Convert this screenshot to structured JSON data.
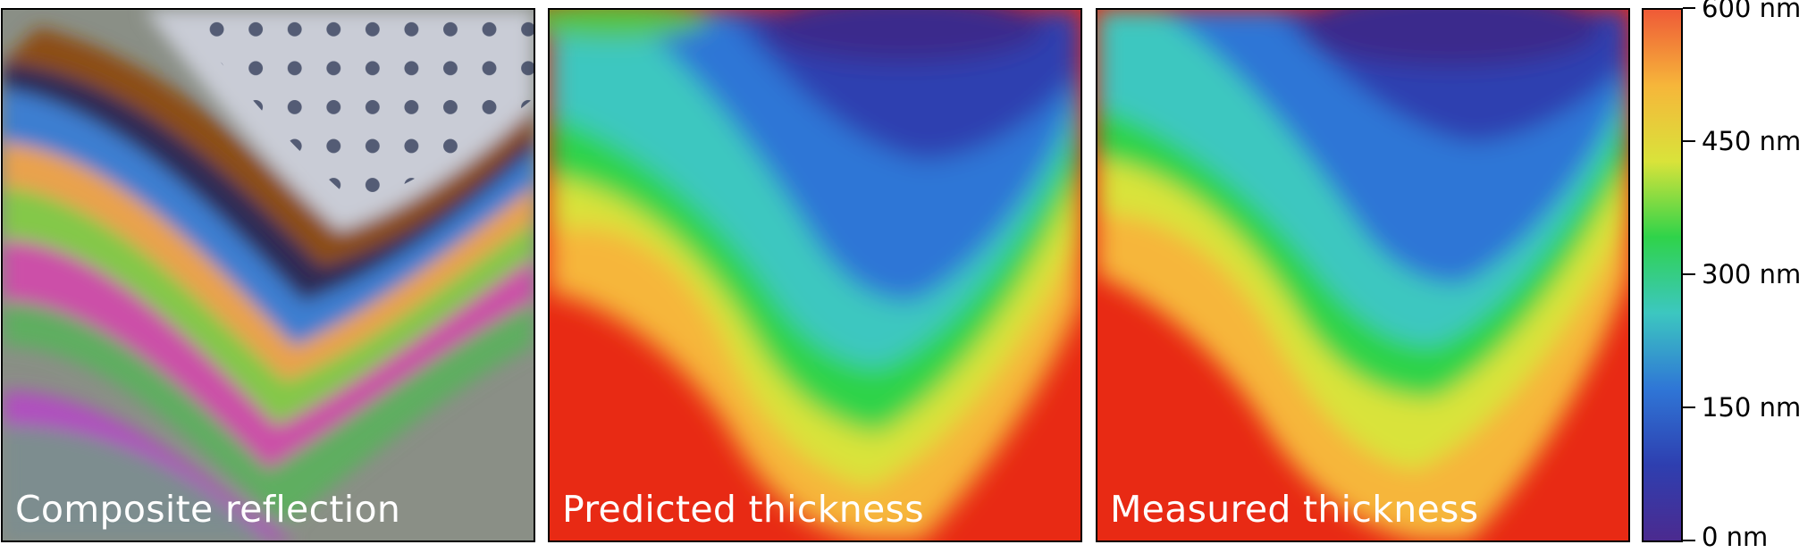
{
  "panels": [
    {
      "id": "composite",
      "caption": "Composite reflection",
      "kind": "optical-micrograph"
    },
    {
      "id": "predicted",
      "caption": "Predicted thickness",
      "kind": "thickness-map"
    },
    {
      "id": "measured",
      "caption": "Measured thickness",
      "kind": "thickness-map"
    }
  ],
  "colorbar": {
    "colormap": "rainbow (violet → blue → cyan → green → yellow → orange → red)",
    "colors": [
      "#4b2a8f",
      "#2e3fb0",
      "#2f76d6",
      "#3cc7c0",
      "#2fd34a",
      "#d9e33a",
      "#f6b63a",
      "#ef5a37"
    ],
    "range": [
      0,
      600
    ],
    "ticks": [
      "600 nm",
      "450 nm",
      "300 nm",
      "150 nm",
      "0 nm"
    ]
  }
}
